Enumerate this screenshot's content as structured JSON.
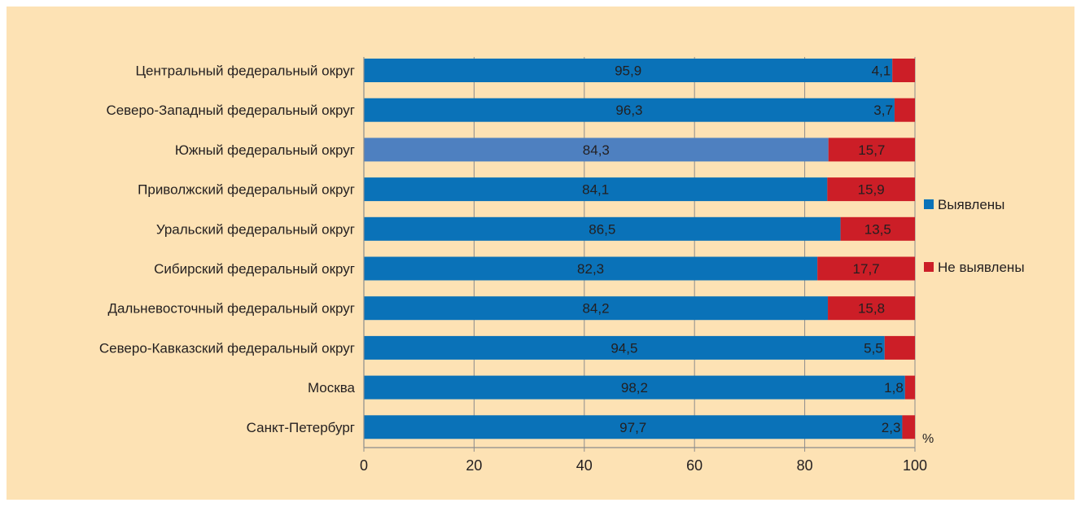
{
  "chart_data": {
    "type": "bar",
    "orientation": "horizontal",
    "stacked": true,
    "categories": [
      "Центральный федеральный округ",
      "Северо-Западный федеральный округ",
      "Южный федеральный округ",
      "Приволжский федеральный округ",
      "Уральский федеральный округ",
      "Сибирский федеральный округ",
      "Дальневосточный федеральный округ",
      "Северо-Кавказский федеральный округ",
      "Москва",
      "Санкт-Петербург"
    ],
    "series": [
      {
        "name": "Выявлены",
        "color": "#0a72b8",
        "values": [
          95.9,
          96.3,
          84.3,
          84.1,
          86.5,
          82.3,
          84.2,
          94.5,
          98.2,
          97.7
        ],
        "labels": [
          "95,9",
          "96,3",
          "84,3",
          "84,1",
          "86,5",
          "82,3",
          "84,2",
          "94,5",
          "98,2",
          "97,7"
        ]
      },
      {
        "name": "Не выявлены",
        "color": "#cc1e27",
        "values": [
          4.1,
          3.7,
          15.7,
          15.9,
          13.5,
          17.7,
          15.8,
          5.5,
          1.8,
          2.3
        ],
        "labels": [
          "4,1",
          "3,7",
          "15,7",
          "15,9",
          "13,5",
          "17,7",
          "15,8",
          "5,5",
          "1,8",
          "2,3"
        ]
      }
    ],
    "highlight": {
      "index": 2,
      "color": "#4e80c0"
    },
    "xlim": [
      0,
      100
    ],
    "xticks": [
      0,
      20,
      40,
      60,
      80,
      100
    ],
    "xticklabels": [
      "0",
      "20",
      "40",
      "60",
      "80",
      "100"
    ],
    "xunit": "%",
    "grid": "vertical",
    "legend_position": "right",
    "background": "#fde2b4"
  }
}
